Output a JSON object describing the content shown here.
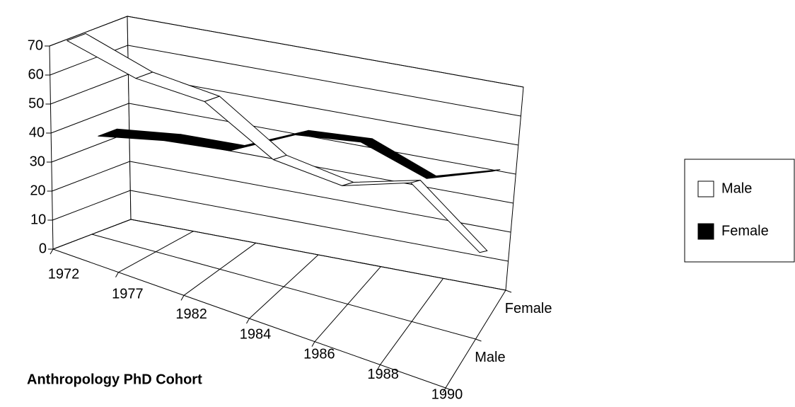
{
  "chart_data": {
    "type": "line3d",
    "x_label": "Anthropology PhD Cohort",
    "categories": [
      "1972",
      "1977",
      "1982",
      "1984",
      "1986",
      "1988",
      "1990"
    ],
    "series": [
      {
        "name": "Male",
        "color": "#ffffff",
        "values": [
          70,
          60,
          55,
          38,
          32,
          36,
          15
        ]
      },
      {
        "name": "Female",
        "color": "#000000",
        "values": [
          33,
          35,
          35,
          44,
          45,
          36,
          42
        ]
      }
    ],
    "ylim": [
      0,
      70
    ],
    "yticks": [
      0,
      10,
      20,
      30,
      40,
      50,
      60,
      70
    ],
    "grid": true,
    "legend": "right"
  }
}
